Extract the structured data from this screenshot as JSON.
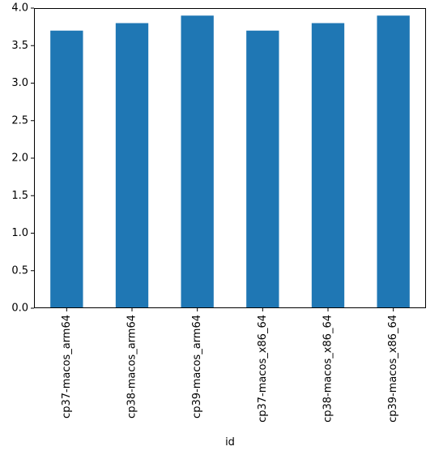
{
  "chart_data": {
    "type": "bar",
    "categories": [
      "cp37-macos_arm64",
      "cp38-macos_arm64",
      "cp39-macos_arm64",
      "cp37-macos_x86_64",
      "cp38-macos_x86_64",
      "cp39-macos_x86_64"
    ],
    "values": [
      3.7,
      3.8,
      3.9,
      3.7,
      3.8,
      3.9
    ],
    "title": "",
    "xlabel": "id",
    "ylabel": "",
    "ylim": [
      0,
      4.0
    ],
    "yticks": [
      "0.0",
      "0.5",
      "1.0",
      "1.5",
      "2.0",
      "2.5",
      "3.0",
      "3.5",
      "4.0"
    ],
    "bar_color": "#1f77b4",
    "grid": false,
    "legend": "none"
  }
}
